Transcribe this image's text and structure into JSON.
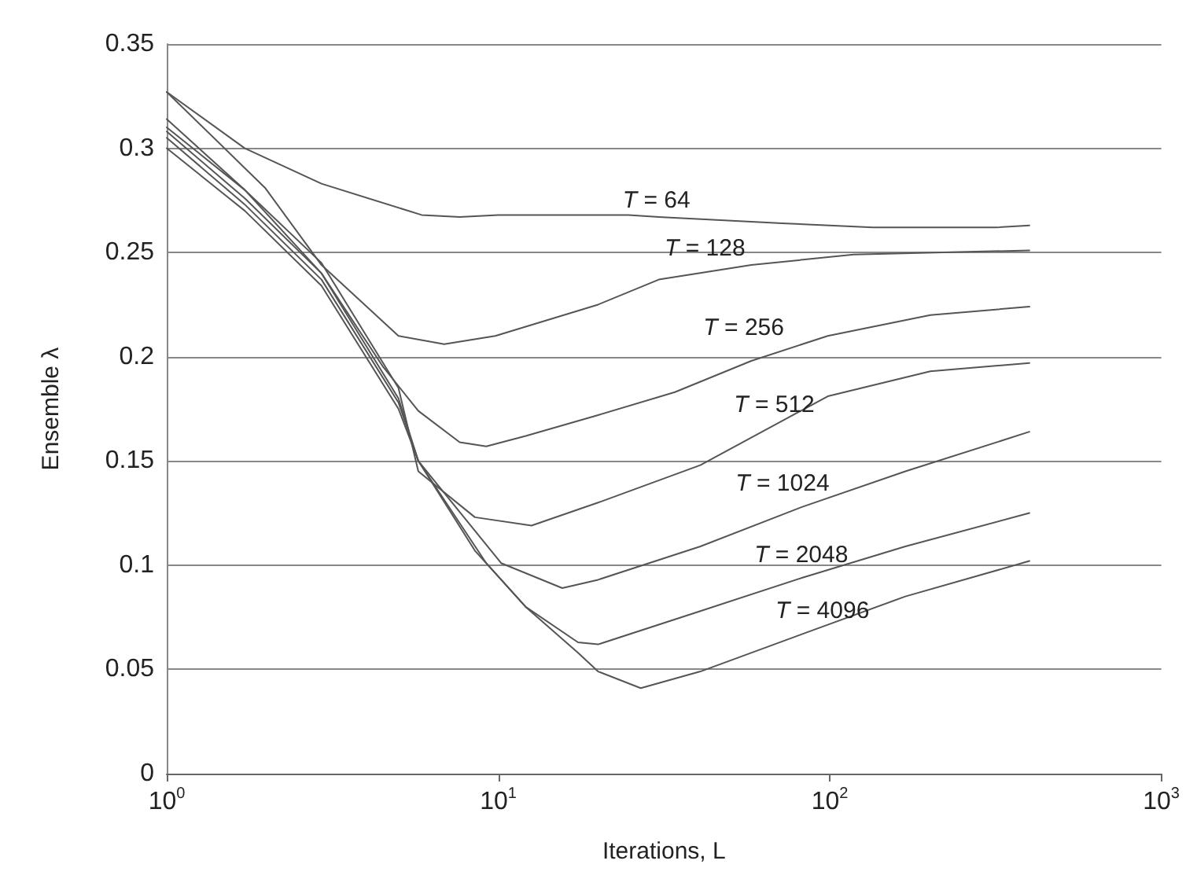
{
  "chart_data": {
    "type": "line",
    "xlabel": "Iterations, L",
    "ylabel": "Ensemble λ",
    "log": "x",
    "xlim": [
      1,
      1000
    ],
    "xticks": [
      {
        "value": 1,
        "label": "10$^{0}$"
      },
      {
        "value": 10,
        "label": "10$^{1}$"
      },
      {
        "value": 100,
        "label": "10$^{2}$"
      },
      {
        "value": 1000,
        "label": "10$^{3}$"
      }
    ],
    "ylim": [
      0,
      0.35
    ],
    "yticks": [
      0,
      0.05,
      0.1,
      0.15,
      0.2,
      0.25,
      0.3,
      0.35
    ],
    "grid": "y",
    "line_style": "solid",
    "marker": "none",
    "series": [
      {
        "name": "T = 64",
        "color": "#555555",
        "x": [
          1,
          1.72,
          2.93,
          5.87,
          7.65,
          10,
          24.7,
          30.5,
          71.7,
          135,
          317,
          400
        ],
        "values": [
          0.327,
          0.3,
          0.283,
          0.268,
          0.267,
          0.268,
          0.268,
          0.267,
          0.264,
          0.262,
          0.262,
          0.263
        ]
      },
      {
        "name": "T = 128",
        "color": "#555555",
        "x": [
          1,
          1.98,
          2.93,
          5,
          6.87,
          9.8,
          20,
          30.5,
          58,
          118,
          400
        ],
        "values": [
          0.327,
          0.281,
          0.244,
          0.21,
          0.206,
          0.21,
          0.225,
          0.237,
          0.244,
          0.249,
          0.251
        ]
      },
      {
        "name": "T = 256",
        "color": "#555555",
        "x": [
          1,
          1.72,
          2.93,
          4.5,
          5.74,
          7.65,
          9.2,
          12.1,
          20,
          34.1,
          58,
          98.6,
          201,
          400
        ],
        "values": [
          0.314,
          0.28,
          0.24,
          0.195,
          0.174,
          0.159,
          0.157,
          0.162,
          0.172,
          0.183,
          0.198,
          0.21,
          0.22,
          0.224
        ]
      },
      {
        "name": "T = 512",
        "color": "#555555",
        "x": [
          1,
          1.72,
          2.93,
          5,
          5.74,
          8.5,
          12.6,
          20,
          40.7,
          98.6,
          201,
          400
        ],
        "values": [
          0.31,
          0.28,
          0.245,
          0.185,
          0.145,
          0.123,
          0.119,
          0.13,
          0.148,
          0.181,
          0.193,
          0.197
        ]
      },
      {
        "name": "T = 1024",
        "color": "#555555",
        "x": [
          1,
          1.72,
          2.93,
          5,
          5.74,
          10.2,
          15.6,
          20,
          40.7,
          82.7,
          169,
          400
        ],
        "values": [
          0.308,
          0.276,
          0.24,
          0.18,
          0.15,
          0.101,
          0.089,
          0.093,
          0.109,
          0.128,
          0.145,
          0.164
        ]
      },
      {
        "name": "T = 2048",
        "color": "#555555",
        "x": [
          1,
          1.72,
          2.93,
          5,
          5.74,
          9.2,
          12.1,
          17.4,
          20,
          40.7,
          82.7,
          169,
          400
        ],
        "values": [
          0.305,
          0.273,
          0.237,
          0.178,
          0.15,
          0.101,
          0.08,
          0.063,
          0.062,
          0.078,
          0.094,
          0.109,
          0.125
        ]
      },
      {
        "name": "T = 4096",
        "color": "#555555",
        "x": [
          1,
          1.72,
          2.93,
          5,
          5.74,
          8.5,
          12.1,
          17.4,
          20,
          26.9,
          40.7,
          82.7,
          169,
          400
        ],
        "values": [
          0.3,
          0.27,
          0.234,
          0.175,
          0.15,
          0.107,
          0.08,
          0.058,
          0.049,
          0.041,
          0.049,
          0.067,
          0.085,
          0.102
        ]
      }
    ]
  }
}
